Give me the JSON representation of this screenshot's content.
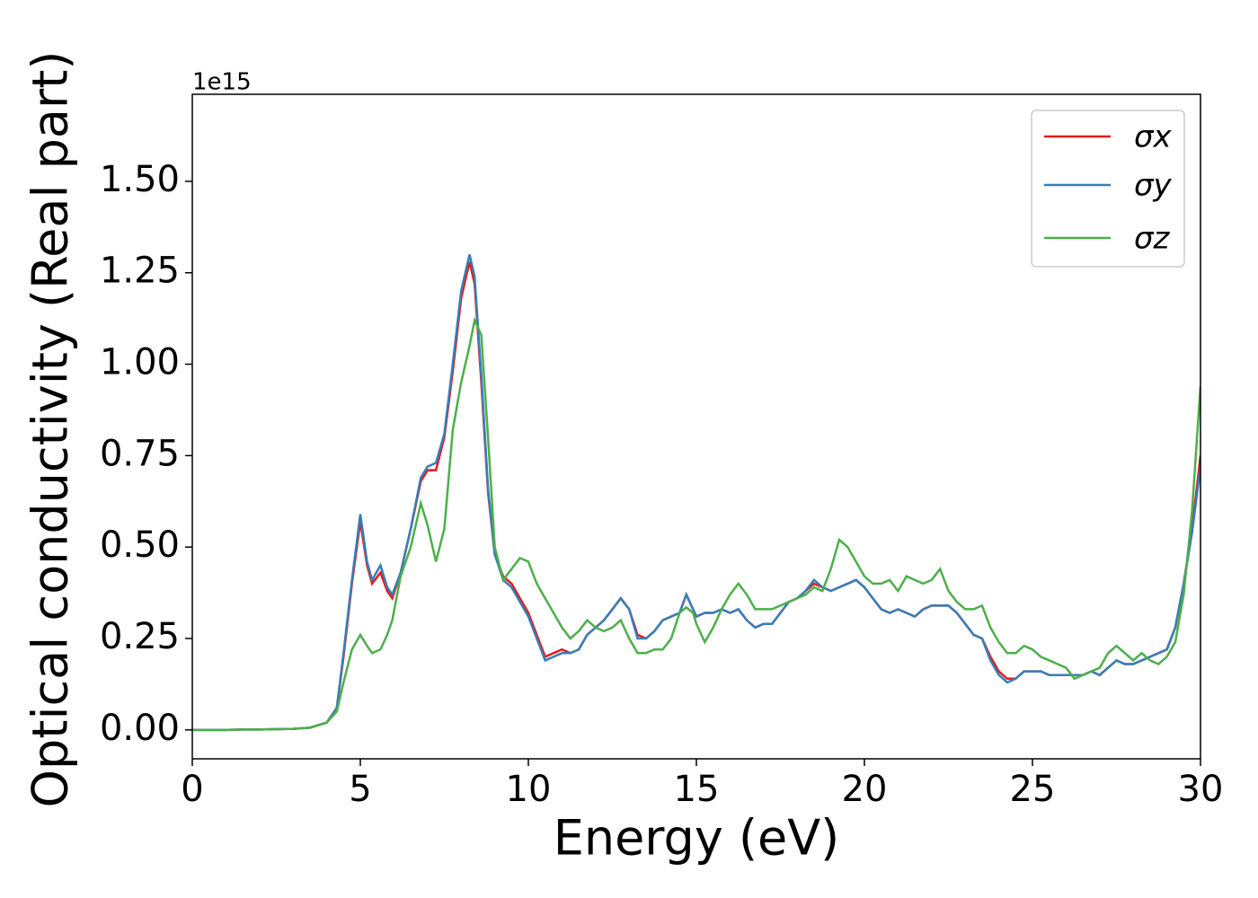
{
  "chart_data": {
    "type": "line",
    "xlabel": "Energy (eV)",
    "ylabel": "Optical conductivity (Real part)",
    "offset_label": "1e15",
    "xlim": [
      0,
      30
    ],
    "xticks": [
      0,
      5,
      10,
      15,
      20,
      25,
      30
    ],
    "ylim": [
      -0.079,
      1.738
    ],
    "yticks": [
      {
        "value": 0,
        "label": "0.00"
      },
      {
        "value": 0.25,
        "label": "0.25"
      },
      {
        "value": 0.5,
        "label": "0.50"
      },
      {
        "value": 0.75,
        "label": "0.75"
      },
      {
        "value": 1.0,
        "label": "1.00"
      },
      {
        "value": 1.25,
        "label": "1.25"
      },
      {
        "value": 1.5,
        "label": "1.50"
      }
    ],
    "legend": "upper right",
    "x": [
      0,
      0.5,
      1,
      1.5,
      2,
      2.5,
      3,
      3.5,
      4,
      4.3,
      4.5,
      4.75,
      5,
      5.2,
      5.35,
      5.6,
      5.8,
      5.95,
      6.2,
      6.5,
      6.8,
      7,
      7.25,
      7.5,
      7.75,
      8,
      8.25,
      8.4,
      8.6,
      8.8,
      9,
      9.25,
      9.5,
      9.75,
      10,
      10.25,
      10.5,
      10.75,
      11,
      11.25,
      11.5,
      11.75,
      12,
      12.25,
      12.5,
      12.75,
      13,
      13.25,
      13.5,
      13.75,
      14,
      14.25,
      14.5,
      14.7,
      14.9,
      15,
      15.25,
      15.5,
      15.75,
      16,
      16.25,
      16.5,
      16.75,
      17,
      17.25,
      17.5,
      17.75,
      18,
      18.25,
      18.5,
      18.75,
      19,
      19.25,
      19.5,
      19.75,
      20,
      20.25,
      20.5,
      20.75,
      21,
      21.25,
      21.5,
      21.75,
      22,
      22.25,
      22.5,
      22.75,
      23,
      23.25,
      23.5,
      23.75,
      24,
      24.25,
      24.5,
      24.75,
      25,
      25.25,
      25.5,
      25.75,
      26,
      26.25,
      26.5,
      26.75,
      27,
      27.25,
      27.5,
      27.75,
      28,
      28.25,
      28.5,
      28.75,
      29,
      29.25,
      29.5,
      29.75,
      30
    ],
    "series": [
      {
        "name": "σx",
        "color": "#e41a1c",
        "values": [
          0,
          0,
          0,
          0.001,
          0.001,
          0.002,
          0.003,
          0.006,
          0.02,
          0.06,
          0.2,
          0.4,
          0.57,
          0.45,
          0.4,
          0.43,
          0.38,
          0.36,
          0.43,
          0.55,
          0.68,
          0.71,
          0.71,
          0.8,
          0.98,
          1.18,
          1.28,
          1.22,
          0.95,
          0.65,
          0.48,
          0.42,
          0.4,
          0.36,
          0.32,
          0.26,
          0.2,
          0.21,
          0.22,
          0.21,
          0.22,
          0.26,
          0.28,
          0.3,
          0.33,
          0.36,
          0.33,
          0.26,
          0.25,
          0.27,
          0.3,
          0.31,
          0.32,
          0.37,
          0.33,
          0.31,
          0.32,
          0.32,
          0.33,
          0.32,
          0.33,
          0.3,
          0.28,
          0.29,
          0.29,
          0.32,
          0.35,
          0.36,
          0.38,
          0.4,
          0.39,
          0.38,
          0.39,
          0.4,
          0.41,
          0.39,
          0.36,
          0.33,
          0.32,
          0.33,
          0.32,
          0.31,
          0.33,
          0.34,
          0.34,
          0.34,
          0.32,
          0.29,
          0.26,
          0.25,
          0.2,
          0.16,
          0.14,
          0.14,
          0.16,
          0.16,
          0.16,
          0.15,
          0.15,
          0.15,
          0.15,
          0.15,
          0.16,
          0.15,
          0.17,
          0.19,
          0.18,
          0.18,
          0.19,
          0.2,
          0.21,
          0.22,
          0.28,
          0.4,
          0.55,
          0.75
        ]
      },
      {
        "name": "σy",
        "color": "#377eb8",
        "values": [
          0,
          0,
          0,
          0.001,
          0.001,
          0.002,
          0.003,
          0.006,
          0.02,
          0.06,
          0.21,
          0.41,
          0.59,
          0.46,
          0.41,
          0.45,
          0.39,
          0.37,
          0.43,
          0.55,
          0.69,
          0.72,
          0.73,
          0.81,
          1.0,
          1.2,
          1.3,
          1.24,
          0.97,
          0.66,
          0.48,
          0.41,
          0.39,
          0.35,
          0.31,
          0.25,
          0.19,
          0.2,
          0.21,
          0.21,
          0.22,
          0.26,
          0.28,
          0.3,
          0.33,
          0.36,
          0.33,
          0.25,
          0.25,
          0.27,
          0.3,
          0.31,
          0.32,
          0.37,
          0.33,
          0.31,
          0.32,
          0.32,
          0.33,
          0.32,
          0.33,
          0.3,
          0.28,
          0.29,
          0.29,
          0.32,
          0.35,
          0.36,
          0.38,
          0.41,
          0.39,
          0.38,
          0.39,
          0.4,
          0.41,
          0.39,
          0.36,
          0.33,
          0.32,
          0.33,
          0.32,
          0.31,
          0.33,
          0.34,
          0.34,
          0.34,
          0.32,
          0.29,
          0.26,
          0.25,
          0.19,
          0.15,
          0.13,
          0.14,
          0.16,
          0.16,
          0.16,
          0.15,
          0.15,
          0.15,
          0.15,
          0.15,
          0.16,
          0.15,
          0.17,
          0.19,
          0.18,
          0.18,
          0.19,
          0.2,
          0.21,
          0.22,
          0.28,
          0.4,
          0.54,
          0.72
        ]
      },
      {
        "name": "σz",
        "color": "#4daf4a",
        "values": [
          0,
          0,
          0,
          0.001,
          0.001,
          0.002,
          0.003,
          0.006,
          0.02,
          0.05,
          0.13,
          0.22,
          0.26,
          0.23,
          0.21,
          0.22,
          0.26,
          0.3,
          0.42,
          0.5,
          0.62,
          0.56,
          0.46,
          0.55,
          0.82,
          0.95,
          1.05,
          1.12,
          1.08,
          0.8,
          0.5,
          0.41,
          0.44,
          0.47,
          0.46,
          0.4,
          0.36,
          0.32,
          0.28,
          0.25,
          0.27,
          0.3,
          0.28,
          0.27,
          0.28,
          0.3,
          0.25,
          0.21,
          0.21,
          0.22,
          0.22,
          0.25,
          0.32,
          0.335,
          0.32,
          0.29,
          0.24,
          0.28,
          0.33,
          0.37,
          0.4,
          0.37,
          0.33,
          0.33,
          0.33,
          0.34,
          0.35,
          0.36,
          0.37,
          0.39,
          0.38,
          0.44,
          0.52,
          0.5,
          0.46,
          0.42,
          0.4,
          0.4,
          0.41,
          0.38,
          0.42,
          0.41,
          0.4,
          0.41,
          0.44,
          0.38,
          0.35,
          0.33,
          0.33,
          0.34,
          0.28,
          0.24,
          0.21,
          0.21,
          0.23,
          0.22,
          0.2,
          0.19,
          0.18,
          0.17,
          0.14,
          0.15,
          0.16,
          0.17,
          0.21,
          0.23,
          0.21,
          0.19,
          0.21,
          0.19,
          0.18,
          0.2,
          0.24,
          0.37,
          0.6,
          0.94
        ]
      }
    ]
  }
}
